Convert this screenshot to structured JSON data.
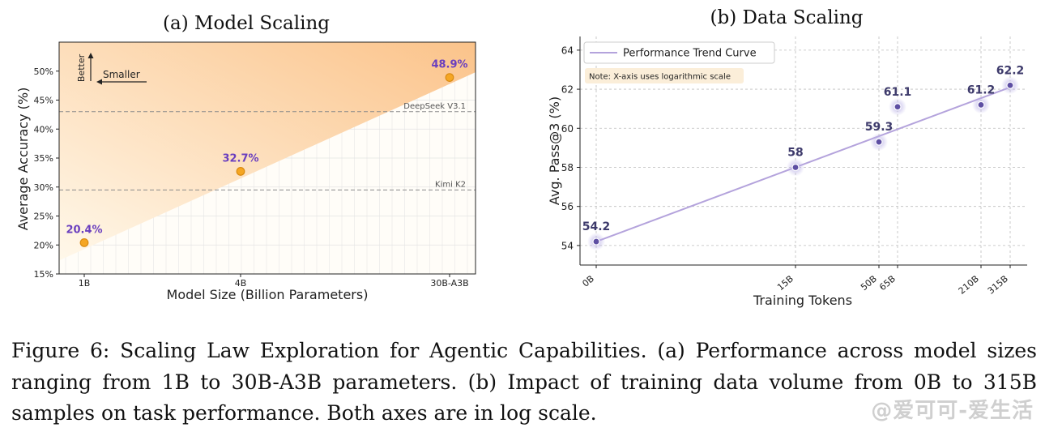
{
  "chart_data": [
    {
      "type": "scatter",
      "title": "(a) Model Scaling",
      "xlabel": "Model Size (Billion Parameters)",
      "ylabel": "Average Accuracy (%)",
      "categories": [
        "1B",
        "4B",
        "30B-A3B"
      ],
      "values": [
        20.4,
        32.7,
        48.9
      ],
      "point_labels": [
        "20.4%",
        "32.7%",
        "48.9%"
      ],
      "ylim": [
        15,
        55
      ],
      "yticks": [
        "15%",
        "20%",
        "25%",
        "30%",
        "35%",
        "40%",
        "45%",
        "50%"
      ],
      "reference_lines": [
        {
          "name": "DeepSeek V3.1",
          "value": 43.0
        },
        {
          "name": "Kimi K2",
          "value": 29.5
        }
      ],
      "annotations": {
        "better": "Better",
        "smaller": "Smaller"
      },
      "grid": true,
      "colors": {
        "point": "#f5a623",
        "label": "#6a3fbf",
        "shade_light": "#fff6e3",
        "shade_dark": "#fbc892"
      }
    },
    {
      "type": "line",
      "title": "(b) Data Scaling",
      "xlabel": "Training Tokens",
      "ylabel": "Avg. Pass@3 (%)",
      "x": [
        "0B",
        "15B",
        "50B",
        "65B",
        "210B",
        "315B"
      ],
      "values": [
        54.2,
        58.0,
        59.3,
        61.1,
        61.2,
        62.2
      ],
      "trend": {
        "name": "Performance Trend Curve",
        "start": 54.2,
        "end": 62.1
      },
      "note": "Note: X-axis uses logarithmic scale",
      "ylim": [
        53,
        64.7
      ],
      "yticks": [
        "54",
        "56",
        "58",
        "60",
        "62",
        "64"
      ],
      "log_x": true,
      "grid": true,
      "legend_position": "top-left",
      "colors": {
        "trend": "#b4a3dc",
        "point": "#5e4fa3",
        "label": "#3d3a6b",
        "note_bg": "#fbeed9"
      }
    }
  ],
  "caption": "Figure 6: Scaling Law Exploration for Agentic Capabilities. (a) Performance across model sizes ranging from 1B to 30B-A3B parameters. (b) Impact of training data volume from 0B to 315B samples on task performance. Both axes are in log scale.",
  "watermark": "@爱可可-爱生活"
}
